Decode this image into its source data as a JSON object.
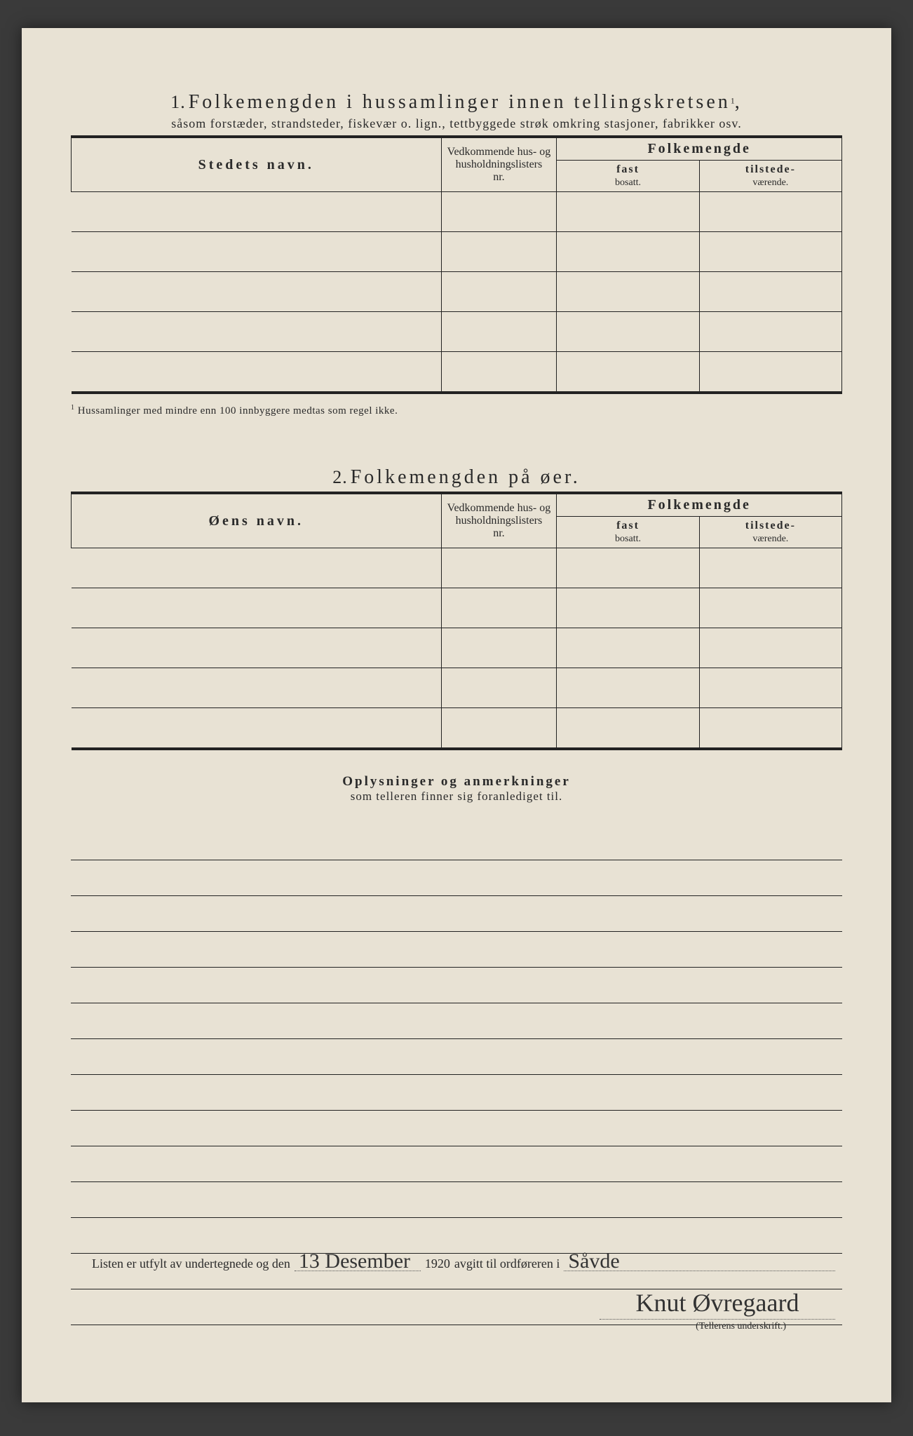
{
  "section1": {
    "number": "1.",
    "title": "Folkemengden i hussamlinger innen tellingskretsen",
    "title_sup": "1",
    "subtitle": "såsom forstæder, strandsteder, fiskevær o. lign., tettbyggede strøk omkring stasjoner, fabrikker osv.",
    "columns": {
      "name": "Stedets navn.",
      "nr_line1": "Vedkommende hus- og",
      "nr_line2": "husholdningslisters",
      "nr_line3": "nr.",
      "folkemengde": "Folkemengde",
      "fast_bold": "fast",
      "fast_small": "bosatt.",
      "tilstede_bold": "tilstede-",
      "tilstede_small": "værende."
    },
    "row_count": 5,
    "footnote_sup": "1",
    "footnote": "Hussamlinger med mindre enn 100 innbyggere medtas som regel ikke."
  },
  "section2": {
    "number": "2.",
    "title": "Folkemengden på øer.",
    "columns": {
      "name": "Øens navn.",
      "nr_line1": "Vedkommende hus- og",
      "nr_line2": "husholdningslisters",
      "nr_line3": "nr.",
      "folkemengde": "Folkemengde",
      "fast_bold": "fast",
      "fast_small": "bosatt.",
      "tilstede_bold": "tilstede-",
      "tilstede_small": "værende."
    },
    "row_count": 5
  },
  "section3": {
    "title_bold": "Oplysninger og anmerkninger",
    "title_sub": "som telleren finner sig foranlediget til.",
    "line_count": 14
  },
  "footer": {
    "text_a": "Listen er utfylt av undertegnede og den",
    "date_hand": "13 Desember",
    "year": "1920",
    "text_b": "avgitt til ordføreren i",
    "place_hand": "Såvde",
    "signature": "Knut Øvregaard",
    "caption": "(Tellerens underskrift.)"
  },
  "colors": {
    "paper": "#e8e2d4",
    "ink": "#222222",
    "background": "#3a3a3a"
  }
}
